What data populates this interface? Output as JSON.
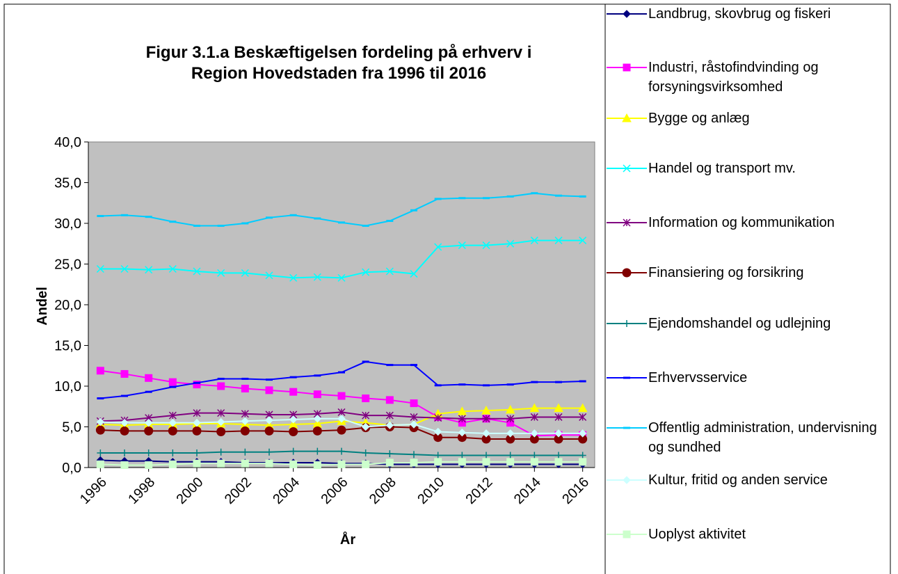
{
  "chart_data": {
    "type": "line",
    "title": [
      "Figur 3.1.a Beskæftigelsen fordeling på erhverv i",
      "Region Hovedstaden fra 1996 til 2016"
    ],
    "x_label": "År",
    "y_label": "Andel",
    "x": [
      1996,
      1997,
      1998,
      1999,
      2000,
      2001,
      2002,
      2003,
      2004,
      2005,
      2006,
      2007,
      2008,
      2009,
      2010,
      2011,
      2012,
      2013,
      2014,
      2015,
      2016
    ],
    "xlim": [
      1995.5,
      2016.5
    ],
    "xticks": [
      1996,
      1998,
      2000,
      2002,
      2004,
      2006,
      2008,
      2010,
      2012,
      2014,
      2016
    ],
    "ylim": [
      0,
      40
    ],
    "yticks": [
      {
        "value": 0,
        "label": "0,0"
      },
      {
        "value": 5,
        "label": "5,0"
      },
      {
        "value": 10,
        "label": "10,0"
      },
      {
        "value": 15,
        "label": "15,0"
      },
      {
        "value": 20,
        "label": "20,0"
      },
      {
        "value": 25,
        "label": "25,0"
      },
      {
        "value": 30,
        "label": "30,0"
      },
      {
        "value": 35,
        "label": "35,0"
      },
      {
        "value": 40,
        "label": "40,0"
      }
    ],
    "grid": false,
    "series": [
      {
        "name": "Landbrug, skovbrug og fiskeri",
        "color": "#000080",
        "marker": "diamond",
        "values": [
          0.9,
          0.8,
          0.8,
          0.7,
          0.7,
          0.7,
          0.6,
          0.6,
          0.6,
          0.6,
          0.5,
          0.5,
          0.4,
          0.4,
          0.4,
          0.4,
          0.4,
          0.4,
          0.4,
          0.4,
          0.4
        ]
      },
      {
        "name": "Industri, råstofindvinding og forsyningsvirksomhed",
        "color": "#ff00ff",
        "marker": "square",
        "values": [
          11.9,
          11.5,
          11.0,
          10.5,
          10.2,
          10.0,
          9.7,
          9.5,
          9.3,
          9.0,
          8.8,
          8.5,
          8.3,
          7.9,
          6.2,
          5.5,
          6.0,
          5.5,
          3.9,
          4.0,
          4.0
        ]
      },
      {
        "name": "Bygge og anlæg",
        "color": "#ffff00",
        "marker": "triangle",
        "values": [
          5.3,
          5.2,
          5.3,
          5.3,
          5.4,
          5.4,
          5.3,
          5.2,
          5.3,
          5.4,
          5.7,
          5.5,
          5.2,
          5.3,
          6.6,
          6.9,
          7.0,
          7.1,
          7.3,
          7.3,
          7.3
        ]
      },
      {
        "name": "Handel og transport mv.",
        "color": "#00ffff",
        "marker": "x",
        "values": [
          24.4,
          24.4,
          24.3,
          24.4,
          24.1,
          23.9,
          23.9,
          23.6,
          23.3,
          23.4,
          23.3,
          24.0,
          24.1,
          23.8,
          27.1,
          27.3,
          27.3,
          27.5,
          27.9,
          27.9,
          27.9
        ]
      },
      {
        "name": "Information og kommunikation",
        "color": "#800080",
        "marker": "star",
        "values": [
          5.7,
          5.8,
          6.1,
          6.4,
          6.7,
          6.7,
          6.6,
          6.5,
          6.5,
          6.6,
          6.8,
          6.4,
          6.4,
          6.2,
          6.1,
          6.0,
          6.0,
          6.0,
          6.2,
          6.2,
          6.2
        ]
      },
      {
        "name": "Finansiering og forsikring",
        "color": "#800000",
        "marker": "circle",
        "values": [
          4.6,
          4.5,
          4.5,
          4.5,
          4.5,
          4.4,
          4.5,
          4.5,
          4.4,
          4.5,
          4.6,
          4.9,
          5.0,
          4.9,
          3.7,
          3.7,
          3.5,
          3.5,
          3.5,
          3.5,
          3.5
        ]
      },
      {
        "name": "Ejendomshandel og udlejning",
        "color": "#008080",
        "marker": "plus",
        "values": [
          1.8,
          1.8,
          1.8,
          1.8,
          1.8,
          1.9,
          1.9,
          1.9,
          2.0,
          2.0,
          2.0,
          1.8,
          1.7,
          1.6,
          1.5,
          1.5,
          1.5,
          1.5,
          1.5,
          1.5,
          1.5
        ]
      },
      {
        "name": "Erhvervsservice",
        "color": "#0000ff",
        "marker": "dash",
        "values": [
          8.5,
          8.8,
          9.3,
          9.9,
          10.4,
          10.9,
          10.9,
          10.8,
          11.1,
          11.3,
          11.7,
          13.0,
          12.6,
          12.6,
          10.1,
          10.2,
          10.1,
          10.2,
          10.5,
          10.5,
          10.6
        ]
      },
      {
        "name": "Offentlig administration, undervisning og sundhed",
        "color": "#00ccff",
        "marker": "dash",
        "values": [
          30.9,
          31.0,
          30.8,
          30.2,
          29.7,
          29.7,
          30.0,
          30.7,
          31.0,
          30.6,
          30.1,
          29.7,
          30.3,
          31.6,
          33.0,
          33.1,
          33.1,
          33.3,
          33.7,
          33.4,
          33.3
        ]
      },
      {
        "name": "Kultur, fritid og anden service",
        "color": "#ccffff",
        "marker": "diamond",
        "values": [
          5.6,
          5.5,
          5.5,
          5.5,
          5.5,
          5.6,
          5.7,
          5.8,
          5.9,
          6.0,
          6.0,
          5.0,
          5.2,
          5.3,
          4.4,
          4.3,
          4.2,
          4.2,
          4.2,
          4.2,
          4.2
        ]
      },
      {
        "name": "Uoplyst aktivitet",
        "color": "#ccffcc",
        "marker": "square",
        "values": [
          0.4,
          0.3,
          0.3,
          0.4,
          0.5,
          0.5,
          0.5,
          0.5,
          0.4,
          0.3,
          0.4,
          0.4,
          0.6,
          0.6,
          0.7,
          0.7,
          0.7,
          0.7,
          0.7,
          0.7,
          0.7
        ]
      }
    ]
  }
}
